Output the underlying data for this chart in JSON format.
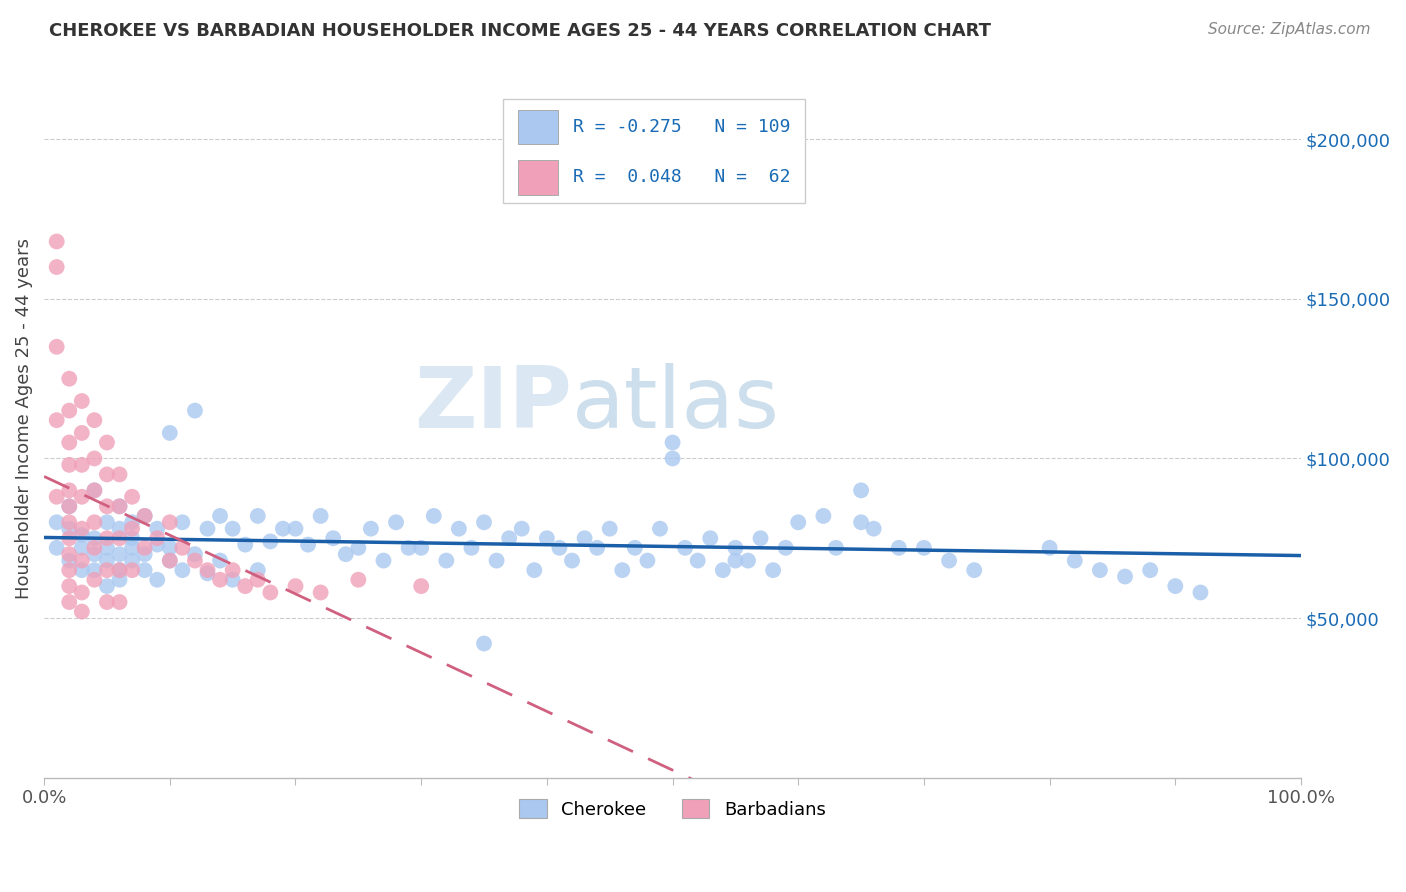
{
  "title": "CHEROKEE VS BARBADIAN HOUSEHOLDER INCOME AGES 25 - 44 YEARS CORRELATION CHART",
  "source": "Source: ZipAtlas.com",
  "ylabel": "Householder Income Ages 25 - 44 years",
  "watermark_zip": "ZIP",
  "watermark_atlas": "atlas",
  "cherokee_R": "-0.275",
  "cherokee_N": "109",
  "barbadian_R": "0.048",
  "barbadian_N": "62",
  "cherokee_color": "#aac8f0",
  "barbadian_color": "#f0a0b8",
  "cherokee_line_color": "#1a5fa8",
  "barbadian_line_color": "#d06080",
  "ytick_labels": [
    "$50,000",
    "$100,000",
    "$150,000",
    "$200,000"
  ],
  "ytick_values": [
    50000,
    100000,
    150000,
    200000
  ],
  "ymin": 0,
  "ymax": 225000,
  "xmin": 0.0,
  "xmax": 1.0,
  "cherokee_x": [
    0.01,
    0.01,
    0.02,
    0.02,
    0.02,
    0.03,
    0.03,
    0.03,
    0.04,
    0.04,
    0.04,
    0.04,
    0.05,
    0.05,
    0.05,
    0.05,
    0.06,
    0.06,
    0.06,
    0.06,
    0.06,
    0.07,
    0.07,
    0.07,
    0.07,
    0.08,
    0.08,
    0.08,
    0.09,
    0.09,
    0.09,
    0.1,
    0.1,
    0.1,
    0.11,
    0.11,
    0.12,
    0.12,
    0.13,
    0.13,
    0.14,
    0.14,
    0.15,
    0.15,
    0.16,
    0.17,
    0.17,
    0.18,
    0.19,
    0.2,
    0.21,
    0.22,
    0.23,
    0.24,
    0.25,
    0.26,
    0.27,
    0.28,
    0.29,
    0.3,
    0.31,
    0.32,
    0.33,
    0.34,
    0.35,
    0.36,
    0.37,
    0.38,
    0.39,
    0.4,
    0.41,
    0.42,
    0.43,
    0.44,
    0.45,
    0.46,
    0.47,
    0.48,
    0.49,
    0.5,
    0.51,
    0.52,
    0.53,
    0.54,
    0.55,
    0.56,
    0.57,
    0.58,
    0.59,
    0.6,
    0.62,
    0.63,
    0.65,
    0.66,
    0.68,
    0.7,
    0.72,
    0.74,
    0.8,
    0.82,
    0.84,
    0.86,
    0.88,
    0.9,
    0.92,
    0.5,
    0.55,
    0.65,
    0.35
  ],
  "cherokee_y": [
    80000,
    72000,
    78000,
    68000,
    85000,
    76000,
    65000,
    72000,
    90000,
    70000,
    65000,
    75000,
    80000,
    68000,
    72000,
    60000,
    85000,
    70000,
    65000,
    78000,
    62000,
    80000,
    72000,
    68000,
    75000,
    82000,
    65000,
    70000,
    78000,
    62000,
    73000,
    108000,
    72000,
    68000,
    80000,
    65000,
    115000,
    70000,
    78000,
    64000,
    82000,
    68000,
    78000,
    62000,
    73000,
    82000,
    65000,
    74000,
    78000,
    78000,
    73000,
    82000,
    75000,
    70000,
    72000,
    78000,
    68000,
    80000,
    72000,
    72000,
    82000,
    68000,
    78000,
    72000,
    80000,
    68000,
    75000,
    78000,
    65000,
    75000,
    72000,
    68000,
    75000,
    72000,
    78000,
    65000,
    72000,
    68000,
    78000,
    105000,
    72000,
    68000,
    75000,
    65000,
    72000,
    68000,
    75000,
    65000,
    72000,
    80000,
    82000,
    72000,
    90000,
    78000,
    72000,
    72000,
    68000,
    65000,
    72000,
    68000,
    65000,
    63000,
    65000,
    60000,
    58000,
    100000,
    68000,
    80000,
    42000
  ],
  "barbadian_x": [
    0.01,
    0.01,
    0.01,
    0.01,
    0.01,
    0.02,
    0.02,
    0.02,
    0.02,
    0.02,
    0.02,
    0.02,
    0.02,
    0.02,
    0.02,
    0.02,
    0.02,
    0.03,
    0.03,
    0.03,
    0.03,
    0.03,
    0.03,
    0.03,
    0.03,
    0.04,
    0.04,
    0.04,
    0.04,
    0.04,
    0.04,
    0.05,
    0.05,
    0.05,
    0.05,
    0.05,
    0.05,
    0.06,
    0.06,
    0.06,
    0.06,
    0.06,
    0.07,
    0.07,
    0.07,
    0.08,
    0.08,
    0.09,
    0.1,
    0.1,
    0.11,
    0.12,
    0.13,
    0.14,
    0.15,
    0.16,
    0.17,
    0.18,
    0.2,
    0.22,
    0.25,
    0.3
  ],
  "barbadian_y": [
    168000,
    160000,
    135000,
    112000,
    88000,
    125000,
    115000,
    105000,
    98000,
    90000,
    85000,
    80000,
    75000,
    70000,
    65000,
    60000,
    55000,
    118000,
    108000,
    98000,
    88000,
    78000,
    68000,
    58000,
    52000,
    112000,
    100000,
    90000,
    80000,
    72000,
    62000,
    105000,
    95000,
    85000,
    75000,
    65000,
    55000,
    95000,
    85000,
    75000,
    65000,
    55000,
    88000,
    78000,
    65000,
    82000,
    72000,
    75000,
    80000,
    68000,
    72000,
    68000,
    65000,
    62000,
    65000,
    60000,
    62000,
    58000,
    60000,
    58000,
    62000,
    60000
  ]
}
